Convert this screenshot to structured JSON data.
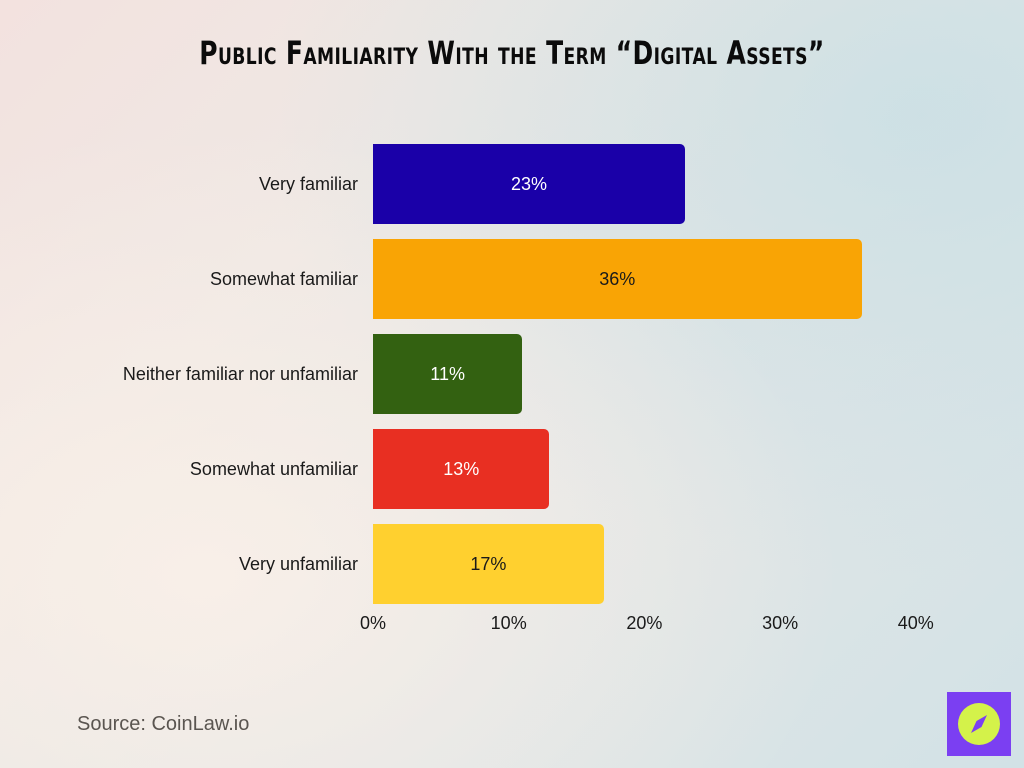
{
  "title": "Public Familiarity With the Term “Digital Assets”",
  "source": "Source: CoinLaw.io",
  "logo": {
    "icon": "compass-icon",
    "bg_color": "#7b3ff2",
    "fg_color": "#d4f24a"
  },
  "chart_data": {
    "type": "bar",
    "orientation": "horizontal",
    "title": "Public Familiarity With the Term “Digital Assets”",
    "xlabel": "",
    "ylabel": "",
    "categories": [
      "Very familiar",
      "Somewhat familiar",
      "Neither familiar nor unfamiliar",
      "Somewhat unfamiliar",
      "Very unfamiliar"
    ],
    "values": [
      23,
      36,
      11,
      13,
      17
    ],
    "value_labels": [
      "23%",
      "36%",
      "11%",
      "13%",
      "17%"
    ],
    "colors": [
      "#1a00a8",
      "#f9a405",
      "#336111",
      "#e82f22",
      "#ffd02f"
    ],
    "label_colors": [
      "#ffffff",
      "#1a1a1a",
      "#ffffff",
      "#ffffff",
      "#1a1a1a"
    ],
    "xlim": [
      0,
      40
    ],
    "xticks": [
      "0%",
      "10%",
      "20%",
      "30%",
      "40%"
    ],
    "grid": false,
    "legend": "none"
  }
}
